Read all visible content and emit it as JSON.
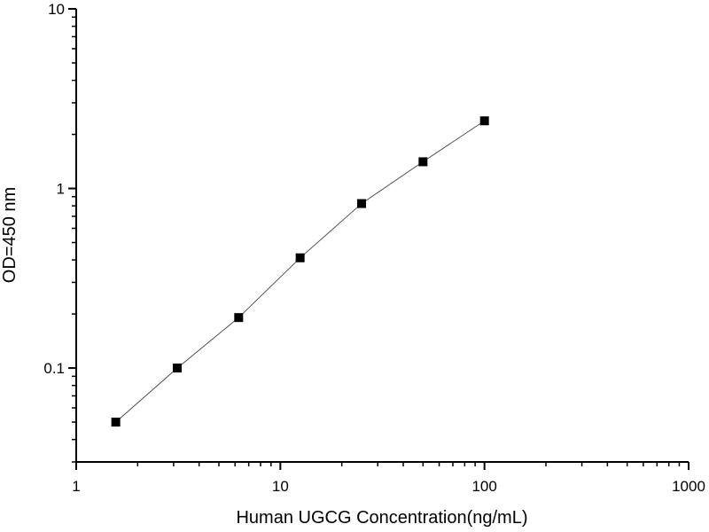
{
  "chart_data": {
    "type": "scatter",
    "title": "",
    "xlabel": "Human UGCG Concentration(ng/mL)",
    "ylabel": "OD=450 nm",
    "x_scale": "log",
    "y_scale": "log",
    "xlim": [
      1,
      1000
    ],
    "ylim": [
      0.03,
      10
    ],
    "x_ticks": [
      1,
      10,
      100,
      1000
    ],
    "x_tick_labels": [
      "1",
      "10",
      "100",
      "1000"
    ],
    "y_ticks": [
      0.1,
      1,
      10
    ],
    "y_tick_labels": [
      "0.1",
      "1",
      "10"
    ],
    "grid": false,
    "legend": "none",
    "series": [
      {
        "x": [
          1.5625,
          3.125,
          6.25,
          12.5,
          25,
          50,
          100
        ],
        "y": [
          0.05,
          0.1,
          0.191,
          0.411,
          0.824,
          1.408,
          2.38
        ],
        "marker": "square",
        "line": "connected",
        "color": "#000000"
      }
    ]
  }
}
